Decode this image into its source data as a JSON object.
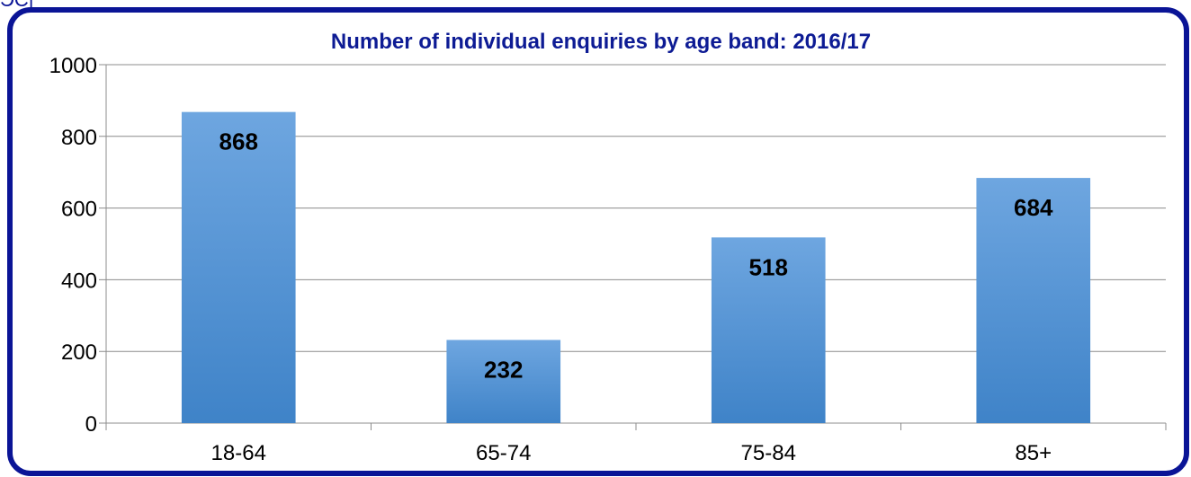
{
  "chart_data": {
    "type": "bar",
    "title": "Number of individual enquiries by age band: 2016/17",
    "categories": [
      "18-64",
      "65-74",
      "75-84",
      "85+"
    ],
    "values": [
      868,
      232,
      518,
      684
    ],
    "data_labels": [
      "868",
      "232",
      "518",
      "684"
    ],
    "y_ticks": [
      "0",
      "200",
      "400",
      "600",
      "800",
      "1000"
    ],
    "ylim": [
      0,
      1000
    ],
    "grid": true,
    "legend": "none",
    "xlabel": "",
    "ylabel": ""
  },
  "colors": {
    "frame_border": "#0a1496",
    "title": "#0d1b94",
    "bar_top": "#6ea6e0",
    "bar_bottom": "#3f83c8",
    "gridline": "#8c8c8c"
  },
  "fragment": {
    "label": "ЭС|"
  }
}
